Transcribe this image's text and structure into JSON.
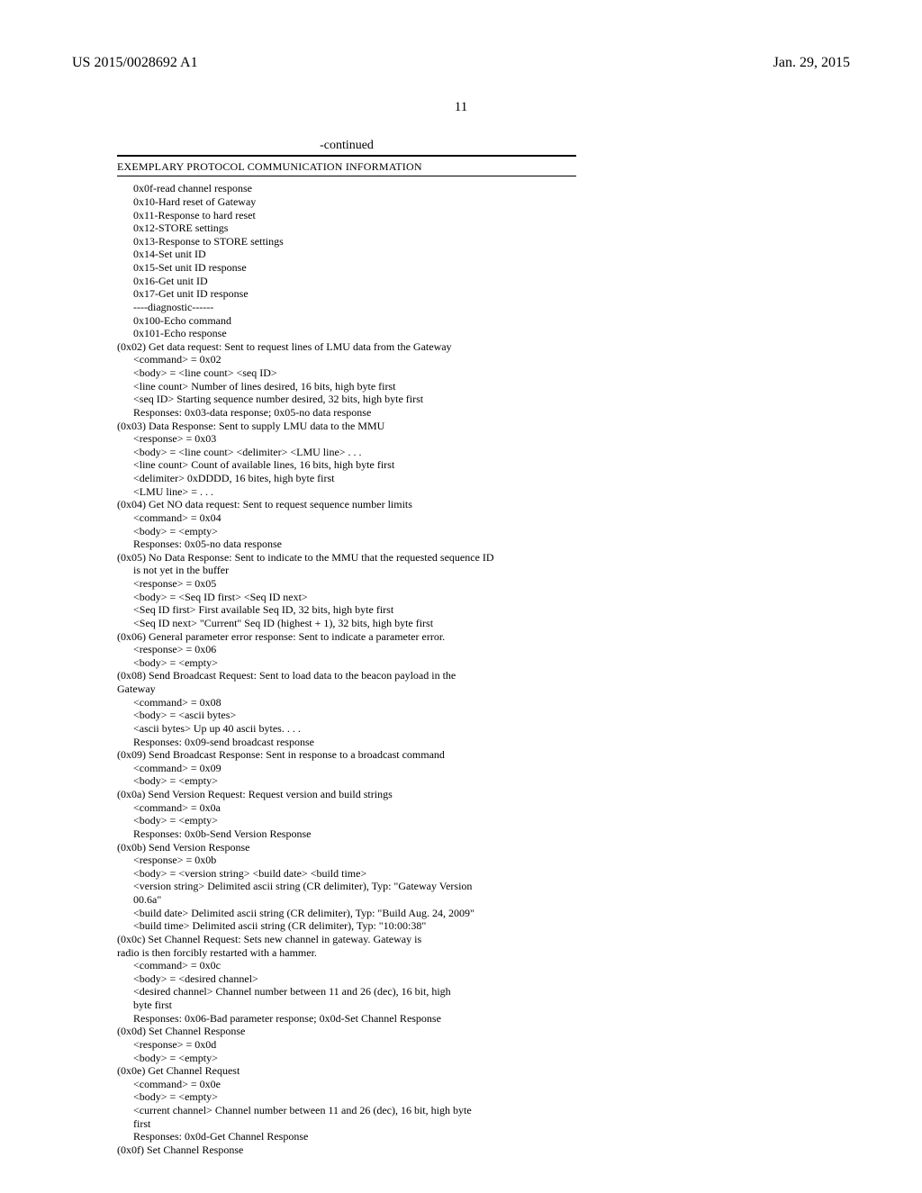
{
  "header": {
    "pubnum": "US 2015/0028692 A1",
    "date": "Jan. 29, 2015",
    "pagenum": "11"
  },
  "table": {
    "continued": "-continued",
    "title": "EXEMPLARY PROTOCOL COMMUNICATION INFORMATION",
    "lines": [
      {
        "t": "0x0f-read channel response",
        "ind": 1
      },
      {
        "t": "0x10-Hard reset of Gateway",
        "ind": 1
      },
      {
        "t": "0x11-Response to hard reset",
        "ind": 1
      },
      {
        "t": "0x12-STORE settings",
        "ind": 1
      },
      {
        "t": "0x13-Response to STORE settings",
        "ind": 1
      },
      {
        "t": "0x14-Set unit ID",
        "ind": 1
      },
      {
        "t": "0x15-Set unit ID response",
        "ind": 1
      },
      {
        "t": "0x16-Get unit ID",
        "ind": 1
      },
      {
        "t": "0x17-Get unit ID response",
        "ind": 1
      },
      {
        "t": "----diagnostic------",
        "ind": 1
      },
      {
        "t": "0x100-Echo command",
        "ind": 1
      },
      {
        "t": "0x101-Echo response",
        "ind": 1
      },
      {
        "t": "(0x02) Get data request: Sent to request lines of LMU data from the Gateway",
        "ind": 0
      },
      {
        "t": "<command> = 0x02",
        "ind": 1
      },
      {
        "t": "<body> = <line count> <seq ID>",
        "ind": 1
      },
      {
        "t": "<line count> Number of lines desired, 16 bits, high byte first",
        "ind": 1
      },
      {
        "t": "<seq ID> Starting sequence number desired, 32 bits, high byte first",
        "ind": 1
      },
      {
        "t": "Responses: 0x03-data response; 0x05-no data response",
        "ind": 1
      },
      {
        "t": "(0x03) Data Response: Sent to supply LMU data to the MMU",
        "ind": 0
      },
      {
        "t": "<response> = 0x03",
        "ind": 1
      },
      {
        "t": "<body> = <line count> <delimiter> <LMU line> . . .",
        "ind": 1
      },
      {
        "t": "<line count> Count of available lines, 16 bits, high byte first",
        "ind": 1
      },
      {
        "t": "<delimiter> 0xDDDD, 16 bites, high byte first",
        "ind": 1
      },
      {
        "t": "<LMU line> = . . .",
        "ind": 1
      },
      {
        "t": "(0x04) Get NO data request: Sent to request sequence number limits",
        "ind": 0
      },
      {
        "t": "<command> = 0x04",
        "ind": 1
      },
      {
        "t": "<body> = <empty>",
        "ind": 1
      },
      {
        "t": "Responses: 0x05-no data response",
        "ind": 1
      },
      {
        "t": "(0x05) No Data Response: Sent to indicate to the MMU that the requested sequence ID",
        "ind": 0
      },
      {
        "t": "is not yet in the buffer",
        "ind": 1
      },
      {
        "t": "<response> = 0x05",
        "ind": 1
      },
      {
        "t": "<body> = <Seq ID first> <Seq ID next>",
        "ind": 1
      },
      {
        "t": "<Seq ID first> First available Seq ID, 32 bits, high byte first",
        "ind": 1
      },
      {
        "t": "<Seq ID next> \"Current\" Seq ID (highest + 1), 32 bits, high byte first",
        "ind": 1
      },
      {
        "t": "(0x06) General parameter error response: Sent to indicate a parameter error.",
        "ind": 0
      },
      {
        "t": "<response> = 0x06",
        "ind": 1
      },
      {
        "t": "<body> = <empty>",
        "ind": 1
      },
      {
        "t": "(0x08) Send Broadcast Request: Sent to load data to the beacon payload in the",
        "ind": 0
      },
      {
        "t": "Gateway",
        "ind": 0
      },
      {
        "t": "<command> = 0x08",
        "ind": 1
      },
      {
        "t": "<body> = <ascii bytes>",
        "ind": 1
      },
      {
        "t": "<ascii bytes> Up up 40 ascii bytes. . . .",
        "ind": 1
      },
      {
        "t": "Responses: 0x09-send broadcast response",
        "ind": 1
      },
      {
        "t": "(0x09) Send Broadcast Response: Sent in response to a broadcast command",
        "ind": 0
      },
      {
        "t": "<command> = 0x09",
        "ind": 1
      },
      {
        "t": "<body> = <empty>",
        "ind": 1
      },
      {
        "t": "(0x0a) Send Version Request: Request version and build strings",
        "ind": 0
      },
      {
        "t": "<command> = 0x0a",
        "ind": 1
      },
      {
        "t": "<body> = <empty>",
        "ind": 1
      },
      {
        "t": "Responses: 0x0b-Send Version Response",
        "ind": 1
      },
      {
        "t": "(0x0b) Send Version Response",
        "ind": 0
      },
      {
        "t": "<response> = 0x0b",
        "ind": 1
      },
      {
        "t": "<body> = <version string> <build date> <build time>",
        "ind": 1
      },
      {
        "t": "<version string> Delimited ascii string (CR delimiter), Typ: \"Gateway Version",
        "ind": 1
      },
      {
        "t": "00.6a\"",
        "ind": 1
      },
      {
        "t": "<build date> Delimited ascii string (CR delimiter), Typ: \"Build Aug. 24, 2009\"",
        "ind": 1
      },
      {
        "t": "<build time> Delimited ascii string (CR delimiter), Typ: \"10:00:38\"",
        "ind": 1
      },
      {
        "t": "(0x0c) Set Channel Request: Sets new channel in gateway. Gateway is",
        "ind": 0
      },
      {
        "t": "radio is then forcibly restarted with a hammer.",
        "ind": 0
      },
      {
        "t": "<command> = 0x0c",
        "ind": 1
      },
      {
        "t": "<body> = <desired channel>",
        "ind": 1
      },
      {
        "t": "<desired channel> Channel number between 11 and 26 (dec), 16 bit, high",
        "ind": 1
      },
      {
        "t": "byte first",
        "ind": 1
      },
      {
        "t": "Responses: 0x06-Bad parameter response; 0x0d-Set Channel Response",
        "ind": 1
      },
      {
        "t": "(0x0d) Set Channel Response",
        "ind": 0
      },
      {
        "t": "<response> = 0x0d",
        "ind": 1
      },
      {
        "t": "<body> = <empty>",
        "ind": 1
      },
      {
        "t": "(0x0e) Get Channel Request",
        "ind": 0
      },
      {
        "t": "<command> = 0x0e",
        "ind": 1
      },
      {
        "t": "<body> = <empty>",
        "ind": 1
      },
      {
        "t": "<current channel> Channel number between 11 and 26 (dec), 16 bit, high byte",
        "ind": 1
      },
      {
        "t": "first",
        "ind": 1
      },
      {
        "t": "Responses: 0x0d-Get Channel Response",
        "ind": 1
      },
      {
        "t": "(0x0f) Set Channel Response",
        "ind": 0
      }
    ]
  }
}
